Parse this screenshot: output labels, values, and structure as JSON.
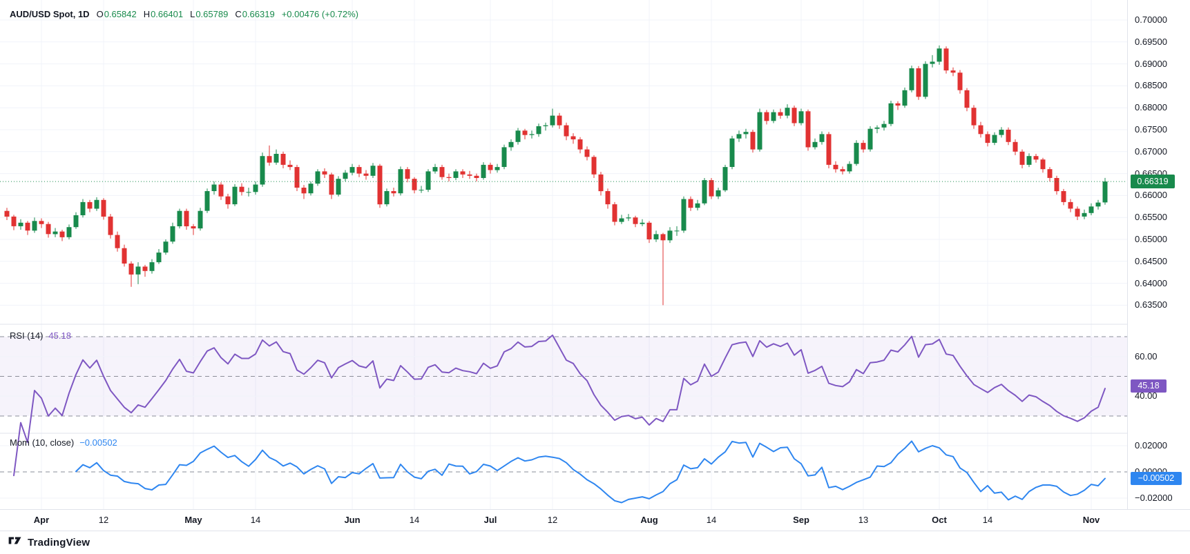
{
  "ui": {
    "symbol_legend": {
      "title": "AUD/USD Spot, 1D",
      "fields": [
        {
          "label": "O",
          "value": "0.65842"
        },
        {
          "label": "H",
          "value": "0.66401"
        },
        {
          "label": "L",
          "value": "0.65789"
        },
        {
          "label": "C",
          "value": "0.66319"
        }
      ],
      "change": "+0.00476 (+0.72%)"
    },
    "rsi_legend": {
      "title": "RSI (14)",
      "value": "45.18"
    },
    "mom_legend": {
      "title": "Mom (10, close)",
      "value": "−0.00502"
    },
    "badges": {
      "price": "0.66319",
      "rsi": "45.18",
      "mom": "−0.00502"
    },
    "footer_brand": "TradingView",
    "colors": {
      "up": "#188A4C",
      "down": "#E13232",
      "rsi": "#7E57C2",
      "mom": "#2E86F0",
      "grid": "#F0F3FA",
      "dashed": "#8A8D98",
      "separator": "#E0E3EB",
      "text": "#131722"
    }
  },
  "chart_data": {
    "type": "candlestick",
    "symbol": "AUD/USD Spot",
    "interval": "1D",
    "ohlc_last": {
      "open": 0.65842,
      "high": 0.66401,
      "low": 0.65789,
      "close": 0.66319,
      "change": 0.00476,
      "change_pct": 0.72
    },
    "last_price": 0.66319,
    "y_axis": {
      "max": 0.7,
      "min": 0.635,
      "step": 0.005,
      "labels": [
        "0.70000",
        "0.69500",
        "0.69000",
        "0.68500",
        "0.68000",
        "0.67500",
        "0.67000",
        "0.66500",
        "0.66000",
        "0.65500",
        "0.65000",
        "0.64500",
        "0.64000",
        "0.63500"
      ]
    },
    "x_ticks": [
      {
        "label": "Apr",
        "bar": 5,
        "major": true
      },
      {
        "label": "12",
        "bar": 14,
        "major": false
      },
      {
        "label": "May",
        "bar": 27,
        "major": true
      },
      {
        "label": "14",
        "bar": 36,
        "major": false
      },
      {
        "label": "Jun",
        "bar": 50,
        "major": true
      },
      {
        "label": "14",
        "bar": 59,
        "major": false
      },
      {
        "label": "Jul",
        "bar": 70,
        "major": true
      },
      {
        "label": "12",
        "bar": 79,
        "major": false
      },
      {
        "label": "Aug",
        "bar": 93,
        "major": true
      },
      {
        "label": "14",
        "bar": 102,
        "major": false
      },
      {
        "label": "Sep",
        "bar": 115,
        "major": true
      },
      {
        "label": "13",
        "bar": 124,
        "major": false
      },
      {
        "label": "Oct",
        "bar": 135,
        "major": true
      },
      {
        "label": "14",
        "bar": 142,
        "major": false
      },
      {
        "label": "Nov",
        "bar": 157,
        "major": true
      }
    ],
    "candles": [
      [
        0.6565,
        0.6572,
        0.6544,
        0.6552
      ],
      [
        0.6552,
        0.6556,
        0.6521,
        0.653
      ],
      [
        0.653,
        0.6546,
        0.6522,
        0.6538
      ],
      [
        0.6538,
        0.6542,
        0.651,
        0.652
      ],
      [
        0.652,
        0.655,
        0.6515,
        0.6542
      ],
      [
        0.6542,
        0.6548,
        0.6526,
        0.6535
      ],
      [
        0.6535,
        0.654,
        0.6504,
        0.6512
      ],
      [
        0.6512,
        0.6526,
        0.6505,
        0.6518
      ],
      [
        0.6518,
        0.6522,
        0.6496,
        0.6505
      ],
      [
        0.6505,
        0.6534,
        0.65,
        0.6528
      ],
      [
        0.6528,
        0.6562,
        0.6524,
        0.6555
      ],
      [
        0.6555,
        0.6592,
        0.655,
        0.6585
      ],
      [
        0.6585,
        0.659,
        0.6562,
        0.657
      ],
      [
        0.657,
        0.6596,
        0.6565,
        0.659
      ],
      [
        0.659,
        0.6594,
        0.6545,
        0.6552
      ],
      [
        0.6552,
        0.6558,
        0.6502,
        0.651
      ],
      [
        0.651,
        0.6518,
        0.6472,
        0.648
      ],
      [
        0.648,
        0.6488,
        0.6438,
        0.6445
      ],
      [
        0.6445,
        0.645,
        0.6392,
        0.642
      ],
      [
        0.642,
        0.6448,
        0.6398,
        0.6438
      ],
      [
        0.6438,
        0.6442,
        0.6415,
        0.6428
      ],
      [
        0.6428,
        0.6455,
        0.6422,
        0.6448
      ],
      [
        0.6448,
        0.6478,
        0.6444,
        0.647
      ],
      [
        0.647,
        0.65,
        0.6465,
        0.6495
      ],
      [
        0.6495,
        0.6538,
        0.649,
        0.653
      ],
      [
        0.653,
        0.657,
        0.6525,
        0.6565
      ],
      [
        0.6565,
        0.657,
        0.6522,
        0.653
      ],
      [
        0.653,
        0.6535,
        0.651,
        0.6525
      ],
      [
        0.6525,
        0.6572,
        0.652,
        0.6565
      ],
      [
        0.6565,
        0.6616,
        0.656,
        0.661
      ],
      [
        0.661,
        0.6632,
        0.6602,
        0.6625
      ],
      [
        0.6625,
        0.663,
        0.659,
        0.6598
      ],
      [
        0.6598,
        0.6604,
        0.657,
        0.658
      ],
      [
        0.658,
        0.6626,
        0.6576,
        0.662
      ],
      [
        0.662,
        0.6628,
        0.66,
        0.6608
      ],
      [
        0.6608,
        0.6618,
        0.6598,
        0.6608
      ],
      [
        0.6608,
        0.6632,
        0.6602,
        0.6625
      ],
      [
        0.6625,
        0.6698,
        0.662,
        0.669
      ],
      [
        0.669,
        0.6714,
        0.6668,
        0.6675
      ],
      [
        0.6675,
        0.6705,
        0.667,
        0.6695
      ],
      [
        0.6695,
        0.67,
        0.6662,
        0.667
      ],
      [
        0.667,
        0.668,
        0.6658,
        0.6665
      ],
      [
        0.6665,
        0.667,
        0.661,
        0.6618
      ],
      [
        0.6618,
        0.6624,
        0.6592,
        0.6605
      ],
      [
        0.6605,
        0.6632,
        0.66,
        0.6627
      ],
      [
        0.6627,
        0.666,
        0.6622,
        0.6655
      ],
      [
        0.6655,
        0.6662,
        0.664,
        0.6648
      ],
      [
        0.6648,
        0.6652,
        0.6592,
        0.6602
      ],
      [
        0.6602,
        0.6644,
        0.6598,
        0.6638
      ],
      [
        0.6638,
        0.6658,
        0.6632,
        0.6652
      ],
      [
        0.6652,
        0.6672,
        0.6646,
        0.6665
      ],
      [
        0.6665,
        0.667,
        0.6642,
        0.665
      ],
      [
        0.665,
        0.6658,
        0.6636,
        0.6645
      ],
      [
        0.6645,
        0.6674,
        0.664,
        0.6668
      ],
      [
        0.6668,
        0.6672,
        0.6572,
        0.658
      ],
      [
        0.658,
        0.6616,
        0.6575,
        0.661
      ],
      [
        0.661,
        0.6618,
        0.6598,
        0.6605
      ],
      [
        0.6605,
        0.6666,
        0.66,
        0.666
      ],
      [
        0.666,
        0.6665,
        0.663,
        0.6638
      ],
      [
        0.6638,
        0.6642,
        0.6605,
        0.6612
      ],
      [
        0.6612,
        0.6622,
        0.6606,
        0.6613
      ],
      [
        0.6613,
        0.666,
        0.6608,
        0.6655
      ],
      [
        0.6655,
        0.6672,
        0.665,
        0.6665
      ],
      [
        0.6665,
        0.667,
        0.6636,
        0.6642
      ],
      [
        0.6642,
        0.665,
        0.6632,
        0.664
      ],
      [
        0.664,
        0.666,
        0.6635,
        0.6655
      ],
      [
        0.6655,
        0.666,
        0.664,
        0.6648
      ],
      [
        0.6648,
        0.6656,
        0.6638,
        0.6645
      ],
      [
        0.6645,
        0.665,
        0.6632,
        0.664
      ],
      [
        0.664,
        0.6676,
        0.6636,
        0.667
      ],
      [
        0.667,
        0.6675,
        0.665,
        0.6658
      ],
      [
        0.6658,
        0.6672,
        0.6652,
        0.6665
      ],
      [
        0.6665,
        0.6716,
        0.666,
        0.671
      ],
      [
        0.671,
        0.6728,
        0.6702,
        0.6722
      ],
      [
        0.6722,
        0.6754,
        0.6716,
        0.6748
      ],
      [
        0.6748,
        0.6752,
        0.6728,
        0.6738
      ],
      [
        0.6738,
        0.6748,
        0.673,
        0.674
      ],
      [
        0.674,
        0.6764,
        0.6734,
        0.6758
      ],
      [
        0.6758,
        0.6766,
        0.6748,
        0.676
      ],
      [
        0.676,
        0.6798,
        0.6755,
        0.6782
      ],
      [
        0.6782,
        0.6788,
        0.6752,
        0.676
      ],
      [
        0.676,
        0.6766,
        0.6726,
        0.6735
      ],
      [
        0.6735,
        0.6742,
        0.6718,
        0.6728
      ],
      [
        0.6728,
        0.6733,
        0.6696,
        0.6705
      ],
      [
        0.6705,
        0.6712,
        0.668,
        0.6688
      ],
      [
        0.6688,
        0.6692,
        0.664,
        0.6648
      ],
      [
        0.6648,
        0.6654,
        0.66,
        0.661
      ],
      [
        0.661,
        0.6616,
        0.657,
        0.658
      ],
      [
        0.658,
        0.6585,
        0.6532,
        0.654
      ],
      [
        0.654,
        0.6556,
        0.6535,
        0.6548
      ],
      [
        0.6548,
        0.6558,
        0.6542,
        0.655
      ],
      [
        0.655,
        0.6554,
        0.6528,
        0.6535
      ],
      [
        0.6535,
        0.6546,
        0.653,
        0.6538
      ],
      [
        0.6538,
        0.6542,
        0.6492,
        0.65
      ],
      [
        0.65,
        0.652,
        0.6494,
        0.6512
      ],
      [
        0.6512,
        0.6515,
        0.635,
        0.6498
      ],
      [
        0.6498,
        0.6528,
        0.6492,
        0.652
      ],
      [
        0.652,
        0.653,
        0.6508,
        0.652
      ],
      [
        0.652,
        0.6598,
        0.6515,
        0.6592
      ],
      [
        0.6592,
        0.6598,
        0.6565,
        0.6572
      ],
      [
        0.6572,
        0.659,
        0.6566,
        0.6582
      ],
      [
        0.6582,
        0.664,
        0.6578,
        0.6635
      ],
      [
        0.6635,
        0.664,
        0.6592,
        0.6598
      ],
      [
        0.6598,
        0.6618,
        0.6592,
        0.6612
      ],
      [
        0.6612,
        0.667,
        0.6608,
        0.6665
      ],
      [
        0.6665,
        0.6736,
        0.666,
        0.673
      ],
      [
        0.673,
        0.6748,
        0.6722,
        0.674
      ],
      [
        0.674,
        0.6752,
        0.673,
        0.6745
      ],
      [
        0.6745,
        0.675,
        0.6698,
        0.6705
      ],
      [
        0.6705,
        0.6798,
        0.67,
        0.679
      ],
      [
        0.679,
        0.6795,
        0.6762,
        0.677
      ],
      [
        0.677,
        0.6796,
        0.6765,
        0.679
      ],
      [
        0.679,
        0.6798,
        0.6775,
        0.6782
      ],
      [
        0.6782,
        0.6808,
        0.6776,
        0.68
      ],
      [
        0.68,
        0.6805,
        0.6758,
        0.6765
      ],
      [
        0.6765,
        0.6798,
        0.676,
        0.6792
      ],
      [
        0.6792,
        0.6796,
        0.6702,
        0.671
      ],
      [
        0.671,
        0.673,
        0.6705,
        0.6722
      ],
      [
        0.6722,
        0.6746,
        0.6716,
        0.674
      ],
      [
        0.674,
        0.6745,
        0.6662,
        0.667
      ],
      [
        0.667,
        0.6678,
        0.6652,
        0.666
      ],
      [
        0.666,
        0.6666,
        0.6648,
        0.6655
      ],
      [
        0.6655,
        0.6678,
        0.665,
        0.6672
      ],
      [
        0.6672,
        0.6726,
        0.6668,
        0.672
      ],
      [
        0.672,
        0.6726,
        0.6698,
        0.6705
      ],
      [
        0.6705,
        0.6758,
        0.67,
        0.6752
      ],
      [
        0.6752,
        0.676,
        0.6742,
        0.6755
      ],
      [
        0.6755,
        0.677,
        0.6748,
        0.6763
      ],
      [
        0.6763,
        0.6816,
        0.6758,
        0.681
      ],
      [
        0.681,
        0.6815,
        0.6795,
        0.6805
      ],
      [
        0.6805,
        0.6846,
        0.68,
        0.684
      ],
      [
        0.684,
        0.6896,
        0.6835,
        0.689
      ],
      [
        0.689,
        0.6895,
        0.6818,
        0.6825
      ],
      [
        0.6825,
        0.6906,
        0.682,
        0.69
      ],
      [
        0.69,
        0.692,
        0.6892,
        0.6905
      ],
      [
        0.6905,
        0.6942,
        0.6898,
        0.6935
      ],
      [
        0.6935,
        0.694,
        0.6878,
        0.6885
      ],
      [
        0.6885,
        0.6892,
        0.6872,
        0.688
      ],
      [
        0.688,
        0.6886,
        0.6832,
        0.684
      ],
      [
        0.684,
        0.6845,
        0.6792,
        0.68
      ],
      [
        0.68,
        0.6806,
        0.6752,
        0.676
      ],
      [
        0.676,
        0.6768,
        0.6732,
        0.674
      ],
      [
        0.674,
        0.6746,
        0.6712,
        0.672
      ],
      [
        0.672,
        0.6744,
        0.6715,
        0.6738
      ],
      [
        0.6738,
        0.6756,
        0.6732,
        0.675
      ],
      [
        0.675,
        0.6755,
        0.6715,
        0.6722
      ],
      [
        0.6722,
        0.6728,
        0.6692,
        0.67
      ],
      [
        0.67,
        0.6705,
        0.6662,
        0.667
      ],
      [
        0.667,
        0.6696,
        0.6665,
        0.669
      ],
      [
        0.669,
        0.6695,
        0.6675,
        0.6682
      ],
      [
        0.6682,
        0.6686,
        0.6652,
        0.666
      ],
      [
        0.666,
        0.6665,
        0.6632,
        0.664
      ],
      [
        0.664,
        0.6645,
        0.6602,
        0.661
      ],
      [
        0.661,
        0.6615,
        0.6578,
        0.6585
      ],
      [
        0.6585,
        0.6592,
        0.6562,
        0.657
      ],
      [
        0.657,
        0.6575,
        0.6544,
        0.6552
      ],
      [
        0.6552,
        0.6568,
        0.6546,
        0.656
      ],
      [
        0.656,
        0.6582,
        0.6555,
        0.6575
      ],
      [
        0.6575,
        0.659,
        0.6568,
        0.6584
      ],
      [
        0.65842,
        0.66401,
        0.65789,
        0.66319
      ]
    ],
    "indicators": [
      {
        "id": "rsi",
        "name": "RSI",
        "params": "14",
        "last_value": 45.18,
        "levels": [
          70,
          50,
          30
        ],
        "band": [
          30,
          70
        ],
        "axis_labels": [
          {
            "text": "60.00",
            "value": 60
          },
          {
            "text": "40.00",
            "value": 40
          }
        ]
      },
      {
        "id": "mom",
        "name": "Mom",
        "params": "10, close",
        "last_value": -0.00502,
        "zero_line": 0,
        "axis_labels": [
          {
            "text": "0.02000",
            "value": 0.02
          },
          {
            "text": "0.00000",
            "value": 0
          },
          {
            "text": "−0.02000",
            "value": -0.02
          }
        ]
      }
    ]
  }
}
